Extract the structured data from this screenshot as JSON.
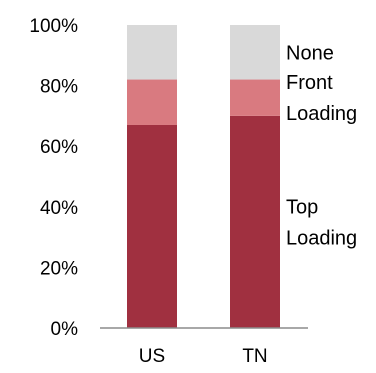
{
  "chart_data": {
    "type": "bar",
    "stacked": true,
    "categories": [
      "US",
      "TN"
    ],
    "series": [
      {
        "name": "Top Loading",
        "name_lines": [
          "Top",
          "Loading"
        ],
        "values": [
          67,
          70
        ],
        "color": "#a03040"
      },
      {
        "name": "Front Loading",
        "name_lines": [
          "Front",
          "Loading"
        ],
        "values": [
          15,
          12
        ],
        "color": "#d97a80"
      },
      {
        "name": "None",
        "name_lines": [
          "None"
        ],
        "values": [
          18,
          18
        ],
        "color": "#d9d9d9"
      }
    ],
    "ylim": [
      0,
      100
    ],
    "yticks": [
      0,
      20,
      40,
      60,
      80,
      100
    ],
    "ytick_labels": [
      "0%",
      "20%",
      "40%",
      "60%",
      "80%",
      "100%"
    ],
    "grid": false,
    "legend": "inline-right",
    "title": "",
    "xlabel": "",
    "ylabel": ""
  }
}
